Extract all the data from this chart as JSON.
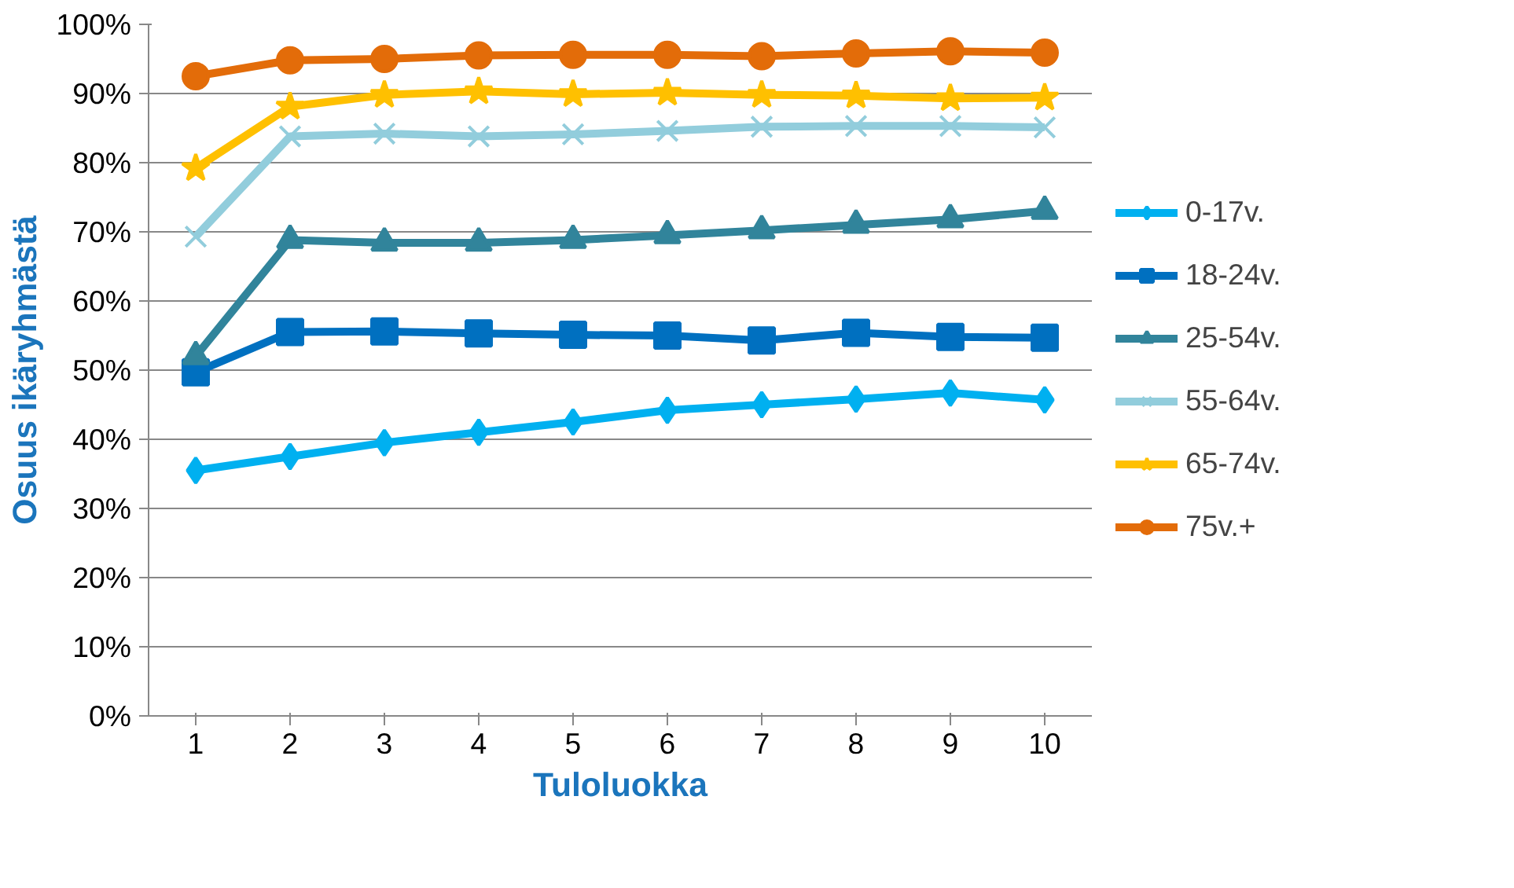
{
  "chart_data": {
    "type": "line",
    "xlabel": "Tuloluokka",
    "ylabel": "Osuus ikäryhmästä",
    "categories": [
      "1",
      "2",
      "3",
      "4",
      "5",
      "6",
      "7",
      "8",
      "9",
      "10"
    ],
    "ylim": [
      0,
      100
    ],
    "yticks": [
      {
        "value": 0,
        "label": "0%"
      },
      {
        "value": 10,
        "label": "10%"
      },
      {
        "value": 20,
        "label": "20%"
      },
      {
        "value": 30,
        "label": "30%"
      },
      {
        "value": 40,
        "label": "40%"
      },
      {
        "value": 50,
        "label": "50%"
      },
      {
        "value": 60,
        "label": "60%"
      },
      {
        "value": 70,
        "label": "70%"
      },
      {
        "value": 80,
        "label": "80%"
      },
      {
        "value": 90,
        "label": "90%"
      },
      {
        "value": 100,
        "label": "100%"
      }
    ],
    "grid": "y",
    "legend": "right",
    "series": [
      {
        "name": "0-17v.",
        "color": "#00b0f0",
        "marker": "diamond",
        "values": [
          35.5,
          37.5,
          39.5,
          41,
          42.5,
          44.2,
          45,
          45.8,
          46.7,
          45.7
        ]
      },
      {
        "name": "18-24v.",
        "color": "#0070c0",
        "marker": "square",
        "values": [
          49.7,
          55.5,
          55.6,
          55.3,
          55.1,
          55,
          54.3,
          55.4,
          54.8,
          54.7
        ]
      },
      {
        "name": "25-54v.",
        "color": "#31849b",
        "marker": "triangle",
        "values": [
          52,
          68.8,
          68.4,
          68.4,
          68.8,
          69.5,
          70.2,
          71,
          71.8,
          73
        ]
      },
      {
        "name": "55-64v.",
        "color": "#92cddc",
        "marker": "cross",
        "values": [
          69.3,
          83.8,
          84.2,
          83.8,
          84.1,
          84.6,
          85.2,
          85.3,
          85.3,
          85.1
        ]
      },
      {
        "name": "65-74v.",
        "color": "#ffc000",
        "marker": "star",
        "values": [
          79.2,
          88.1,
          89.8,
          90.3,
          89.9,
          90.1,
          89.8,
          89.7,
          89.3,
          89.4
        ]
      },
      {
        "name": "75v.+",
        "color": "#e36c09",
        "marker": "circle",
        "values": [
          92.5,
          94.8,
          95,
          95.5,
          95.6,
          95.6,
          95.4,
          95.8,
          96.1,
          95.9
        ]
      }
    ]
  }
}
